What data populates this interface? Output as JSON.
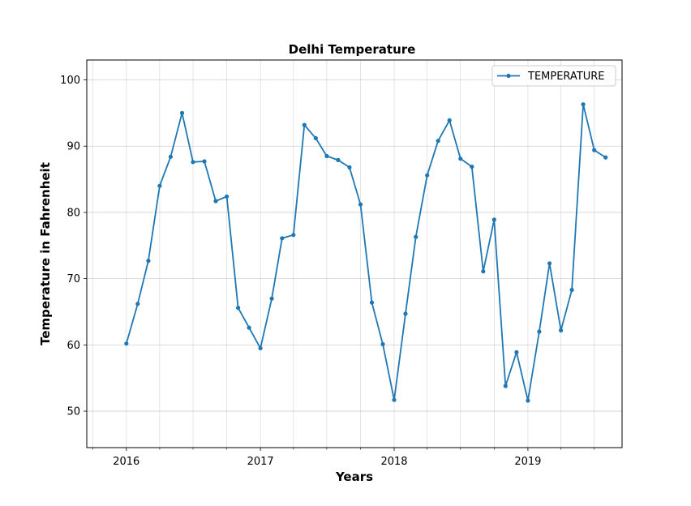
{
  "chart_data": {
    "type": "line",
    "title": "Delhi Temperature",
    "xlabel": "Years",
    "ylabel": "Temperature in Fahrenheit",
    "xlim": [
      "2015-09-15",
      "2019-09-15"
    ],
    "ylim": [
      44.5,
      103
    ],
    "x_ticks": [
      "2016",
      "2017",
      "2018",
      "2019"
    ],
    "y_ticks": [
      50,
      60,
      70,
      80,
      90,
      100
    ],
    "grid": true,
    "legend": {
      "location": "top-right",
      "entries": [
        "TEMPERATURE"
      ]
    },
    "colors": {
      "series": "#1f77b4"
    },
    "series": [
      {
        "name": "TEMPERATURE",
        "x": [
          "2016-01",
          "2016-02",
          "2016-03",
          "2016-04",
          "2016-05",
          "2016-06",
          "2016-07",
          "2016-08",
          "2016-09",
          "2016-10",
          "2016-11",
          "2016-12",
          "2017-01",
          "2017-02",
          "2017-03",
          "2017-04",
          "2017-05",
          "2017-06",
          "2017-07",
          "2017-08",
          "2017-09",
          "2017-10",
          "2017-11",
          "2017-12",
          "2018-01",
          "2018-02",
          "2018-03",
          "2018-04",
          "2018-05",
          "2018-06",
          "2018-07",
          "2018-08",
          "2018-09",
          "2018-10",
          "2018-11",
          "2018-12",
          "2019-01",
          "2019-02",
          "2019-03",
          "2019-04",
          "2019-05",
          "2019-06",
          "2019-07",
          "2019-08"
        ],
        "y": [
          60.2,
          66.2,
          72.7,
          84.0,
          88.4,
          95.0,
          87.6,
          87.7,
          81.7,
          82.4,
          65.6,
          62.6,
          59.5,
          67.0,
          76.1,
          76.6,
          93.2,
          91.2,
          88.5,
          87.9,
          86.8,
          81.2,
          66.4,
          60.1,
          51.7,
          64.7,
          76.3,
          85.6,
          90.8,
          93.9,
          88.1,
          86.9,
          71.1,
          78.9,
          53.8,
          58.9,
          51.6,
          62.0,
          72.3,
          62.2,
          68.3,
          96.3,
          89.4,
          88.3
        ]
      }
    ]
  }
}
